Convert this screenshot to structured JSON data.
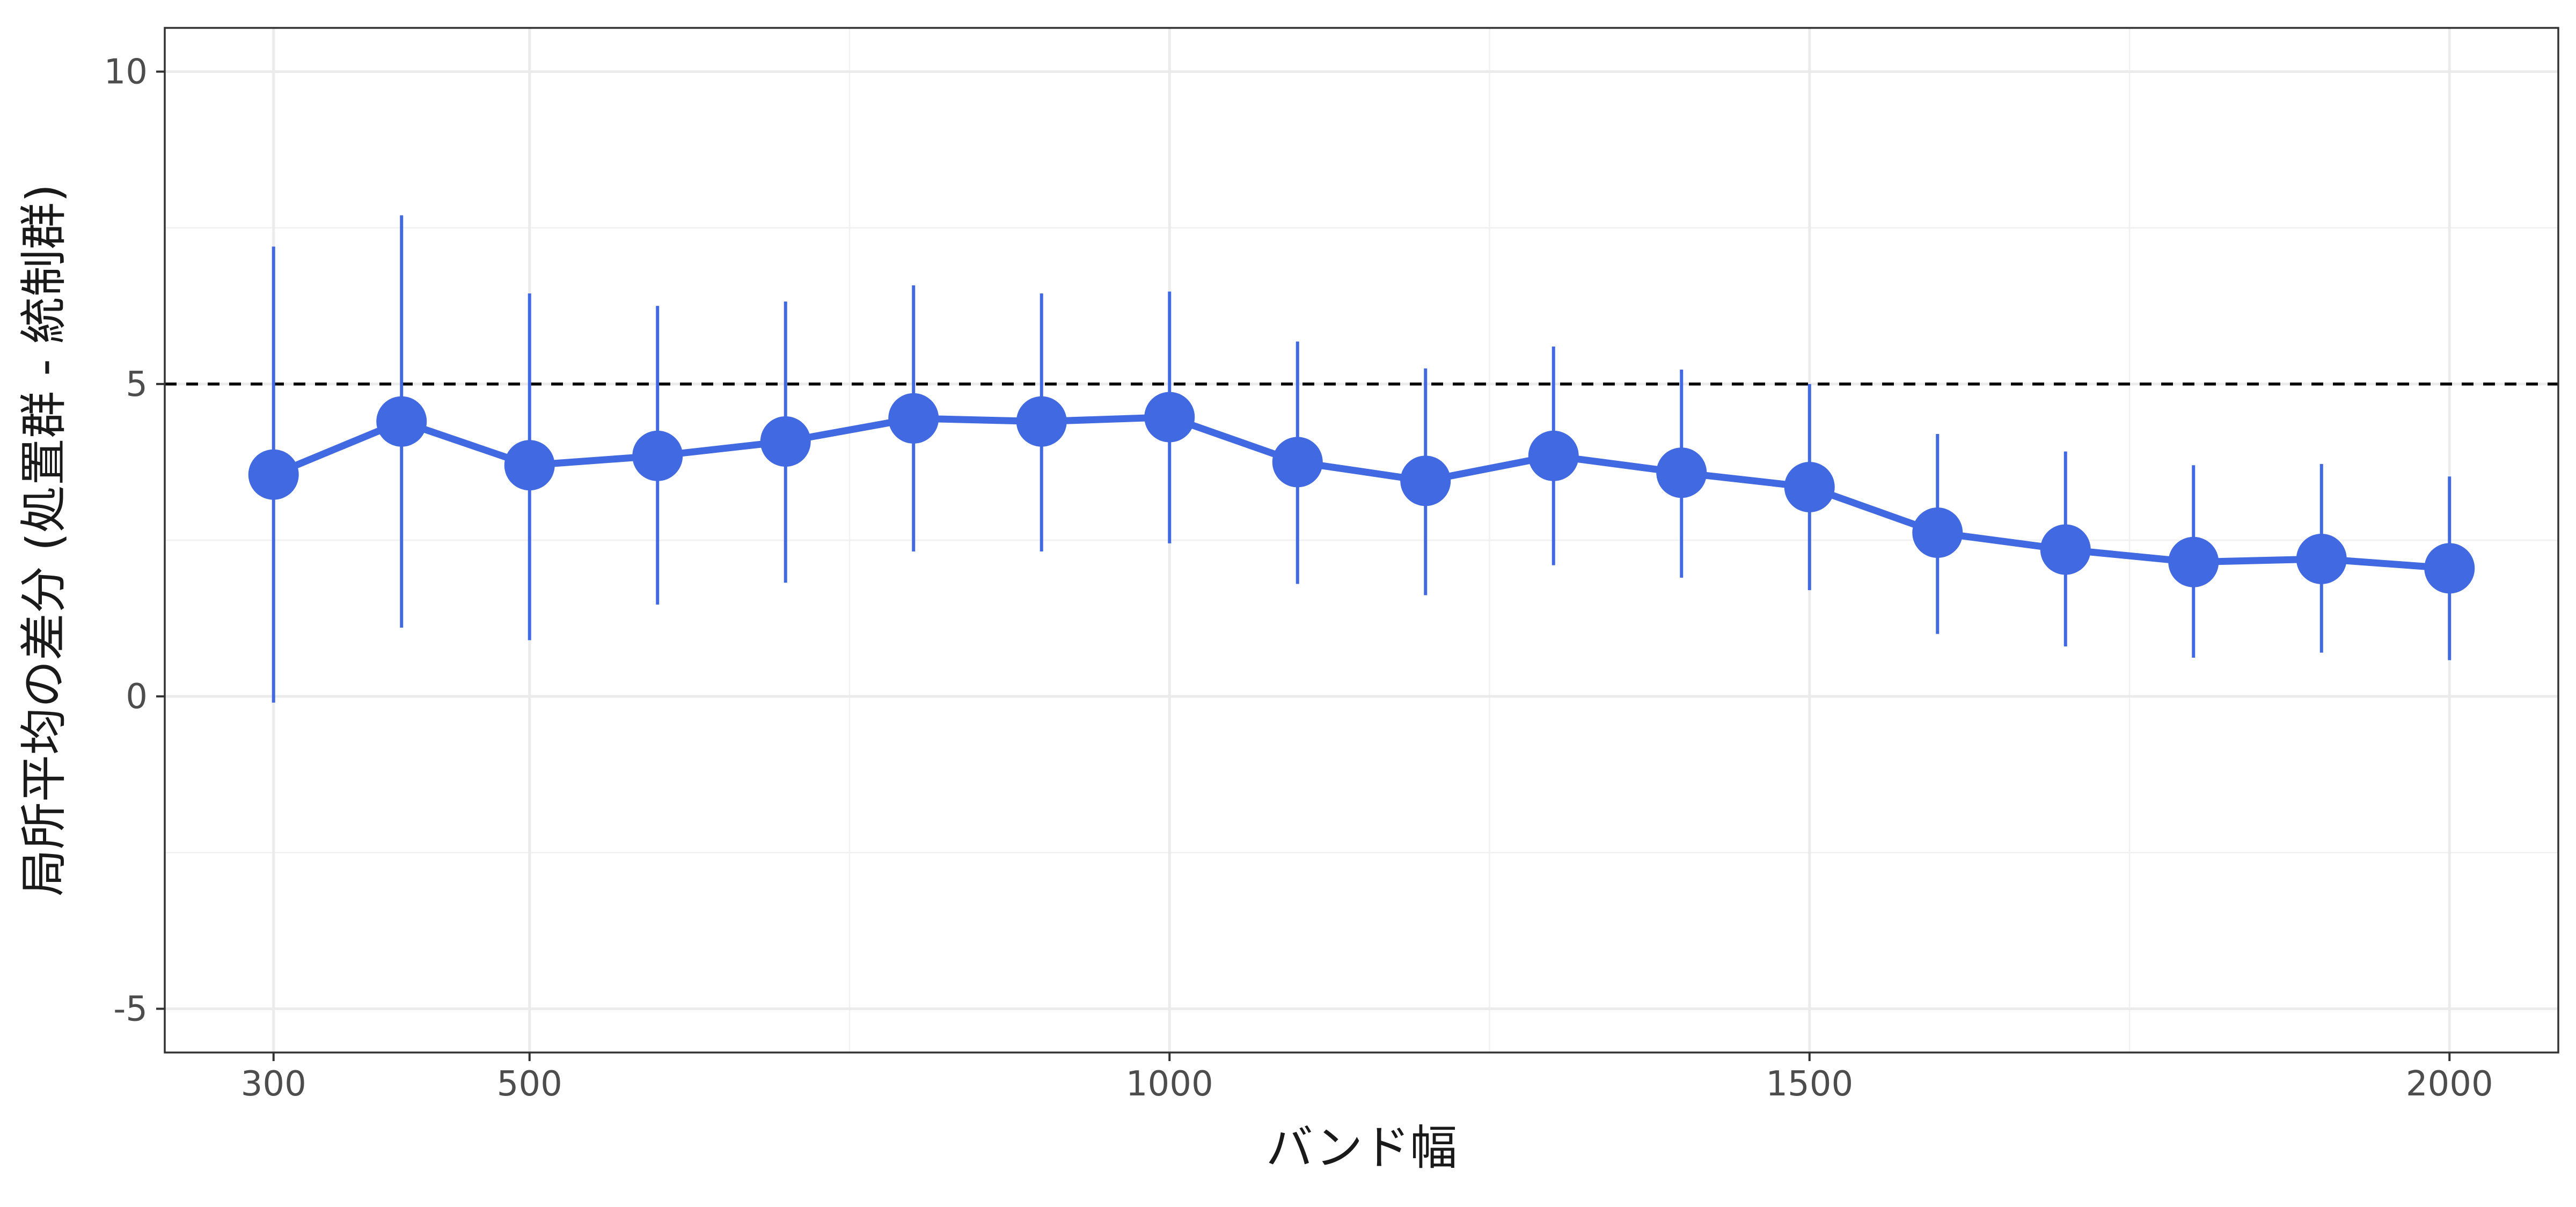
{
  "chart_data": {
    "type": "line",
    "title": "",
    "xlabel": "バンド幅",
    "ylabel": "局所平均の差分 (処置群 - 統制群)",
    "xlim": [
      215,
      2085
    ],
    "ylim": [
      -5.7,
      10.7
    ],
    "x_ticks": [
      300,
      500,
      1000,
      1500,
      2000
    ],
    "x_minor_ticks": [
      750,
      1250,
      1750
    ],
    "y_ticks": [
      -5,
      0,
      5,
      10
    ],
    "y_minor_ticks": [
      -2.5,
      2.5,
      7.5
    ],
    "x_tick_labels": [
      "300",
      "500",
      "1000",
      "1500",
      "2000"
    ],
    "y_tick_labels": [
      "-5",
      "0",
      "5",
      "10"
    ],
    "reference_line": {
      "y": 5,
      "style": "dashed",
      "color": "#000000"
    },
    "grid": true,
    "legend": "none",
    "series": [
      {
        "color": "#4169E1",
        "x": [
          300,
          400,
          500,
          600,
          700,
          800,
          900,
          1000,
          1100,
          1200,
          1300,
          1400,
          1500,
          1600,
          1700,
          1800,
          1900,
          2000
        ],
        "y": [
          3.55,
          4.4,
          3.7,
          3.85,
          4.08,
          4.45,
          4.4,
          4.47,
          3.75,
          3.45,
          3.85,
          3.58,
          3.35,
          2.62,
          2.35,
          2.15,
          2.2,
          2.05
        ],
        "lower": [
          -0.1,
          1.1,
          0.9,
          1.47,
          1.82,
          2.32,
          2.32,
          2.45,
          1.8,
          1.62,
          2.1,
          1.9,
          1.7,
          1.0,
          0.8,
          0.62,
          0.7,
          0.58
        ],
        "upper": [
          7.2,
          7.7,
          6.45,
          6.25,
          6.32,
          6.58,
          6.45,
          6.48,
          5.68,
          5.25,
          5.6,
          5.23,
          5.0,
          4.2,
          3.92,
          3.7,
          3.72,
          3.52
        ]
      }
    ]
  }
}
